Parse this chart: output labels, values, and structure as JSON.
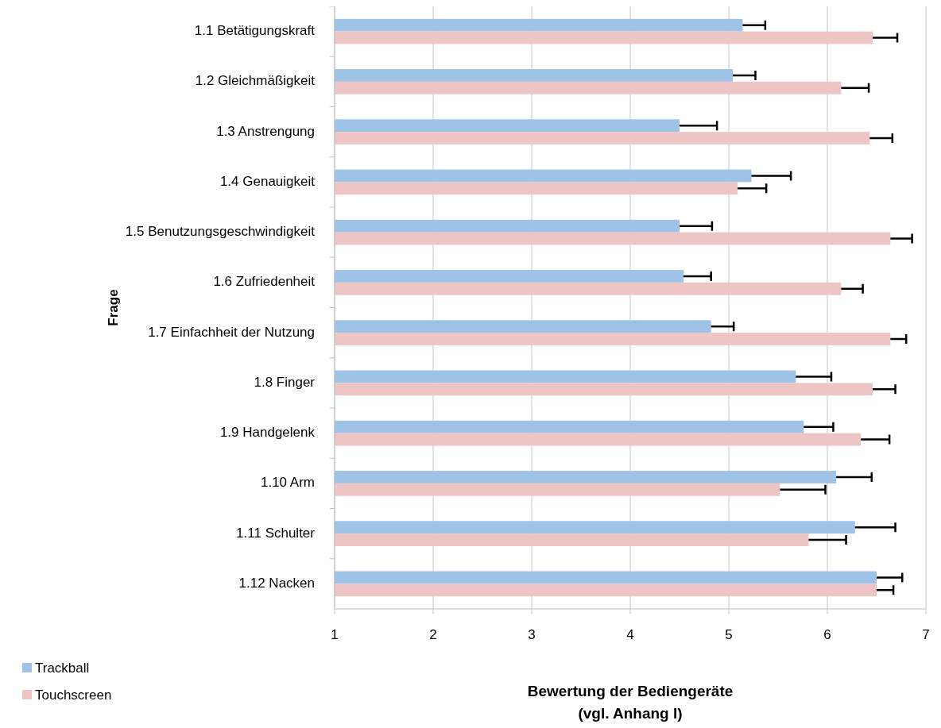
{
  "chart_data": {
    "type": "bar",
    "orientation": "horizontal",
    "xlabel": "Bewertung der Bediengeräte\n(vgl. Anhang I)",
    "ylabel": "Frage",
    "categories": [
      "1.1  Betätigungskraft",
      "1.2  Gleichmäßigkeit",
      "1.3  Anstrengung",
      "1.4  Genauigkeit",
      "1.5  Benutzungsgeschwindigkeit",
      "1.6  Zufriedenheit",
      "1.7  Einfachheit der Nutzung",
      "1.8  Finger",
      "1.9  Handgelenk",
      "1.10 Arm",
      "1.11 Schulter",
      "1.12 Nacken"
    ],
    "series": [
      {
        "name": "Trackball",
        "color": "#9fc2e7",
        "values": [
          5.14,
          5.04,
          4.5,
          5.23,
          4.5,
          4.54,
          4.82,
          5.68,
          5.76,
          6.09,
          6.28,
          6.5
        ],
        "errors": [
          [
            5.14,
            5.37
          ],
          [
            5.04,
            5.27
          ],
          [
            4.5,
            4.88
          ],
          [
            5.23,
            5.63
          ],
          [
            4.5,
            4.83
          ],
          [
            4.54,
            4.82
          ],
          [
            4.82,
            5.05
          ],
          [
            5.68,
            6.04
          ],
          [
            5.76,
            6.06
          ],
          [
            6.09,
            6.45
          ],
          [
            6.28,
            6.69
          ],
          [
            6.5,
            6.76
          ]
        ]
      },
      {
        "name": "Touchscreen",
        "color": "#ecc5c4",
        "values": [
          6.46,
          6.14,
          6.43,
          5.09,
          6.64,
          6.14,
          6.64,
          6.46,
          6.34,
          5.52,
          5.81,
          6.5
        ],
        "errors": [
          [
            6.46,
            6.71
          ],
          [
            6.14,
            6.42
          ],
          [
            6.43,
            6.66
          ],
          [
            5.09,
            5.38
          ],
          [
            6.64,
            6.86
          ],
          [
            6.14,
            6.36
          ],
          [
            6.64,
            6.8
          ],
          [
            6.46,
            6.69
          ],
          [
            6.34,
            6.63
          ],
          [
            5.52,
            5.98
          ],
          [
            5.81,
            6.19
          ],
          [
            6.5,
            6.67
          ]
        ]
      }
    ],
    "xlim": [
      1,
      7
    ],
    "xticks": [
      1,
      2,
      3,
      4,
      5,
      6,
      7
    ],
    "grid": "x",
    "legend": "bottom left"
  }
}
